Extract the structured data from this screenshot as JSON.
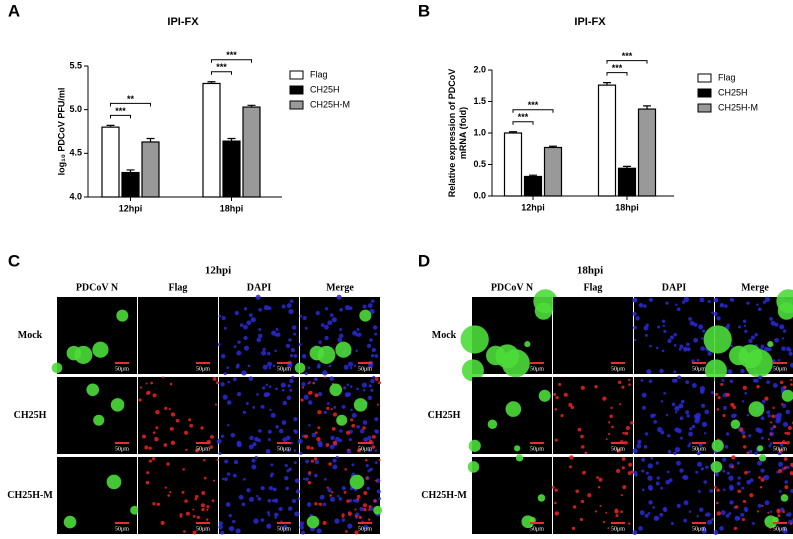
{
  "chart_data": [
    {
      "type": "bar",
      "panel_label": "A",
      "title": "IPI-FX",
      "ylabel": "log₁₀ PDCoV PFU/ml",
      "categories": [
        "12hpi",
        "18hpi"
      ],
      "series": [
        {
          "name": "Flag",
          "color": "#ffffff",
          "values": [
            4.8,
            5.3
          ],
          "errors": [
            0.02,
            0.02
          ]
        },
        {
          "name": "CH25H",
          "color": "#000000",
          "values": [
            4.28,
            4.64
          ],
          "errors": [
            0.03,
            0.03
          ]
        },
        {
          "name": "CH25H-M",
          "color": "#999999",
          "values": [
            4.63,
            5.03
          ],
          "errors": [
            0.04,
            0.02
          ]
        }
      ],
      "annotations": [
        [
          "***",
          "**"
        ],
        [
          "***",
          "***"
        ]
      ],
      "ylim": [
        4.0,
        5.5
      ],
      "yticks": [
        {
          "value": 4,
          "label": "4.0"
        },
        4.5,
        {
          "value": 5,
          "label": "5.0"
        },
        5.5
      ]
    },
    {
      "type": "bar",
      "panel_label": "B",
      "title": "IPI-FX",
      "ylabel": [
        "Relative expression of PDCoV",
        "mRNA (fold)"
      ],
      "categories": [
        "12hpi",
        "18hpi"
      ],
      "series": [
        {
          "name": "Flag",
          "color": "#ffffff",
          "values": [
            1.0,
            1.76
          ],
          "errors": [
            0.02,
            0.04
          ]
        },
        {
          "name": "CH25H",
          "color": "#000000",
          "values": [
            0.31,
            0.44
          ],
          "errors": [
            0.02,
            0.03
          ]
        },
        {
          "name": "CH25H-M",
          "color": "#999999",
          "values": [
            0.77,
            1.38
          ],
          "errors": [
            0.02,
            0.05
          ]
        }
      ],
      "annotations": [
        [
          "***",
          "***"
        ],
        [
          "***",
          "***"
        ]
      ],
      "ylim": [
        0,
        2.0
      ],
      "yticks": [
        {
          "value": 0,
          "label": "0.0"
        },
        0.5,
        {
          "value": 1,
          "label": "1.0"
        },
        1.5,
        {
          "value": 2,
          "label": "2.0"
        }
      ]
    }
  ],
  "panels": [
    {
      "letter": "C",
      "title": "12hpi",
      "columns": [
        "PDCoV N",
        "Flag",
        "DAPI",
        "Merge"
      ],
      "rows": [
        "Mock",
        "CH25H",
        "CH25H-M"
      ],
      "scale_bar": "50μm"
    },
    {
      "letter": "D",
      "title": "18hpi",
      "columns": [
        "PDCoV N",
        "Flag",
        "DAPI",
        "Merge"
      ],
      "rows": [
        "Mock",
        "CH25H",
        "CH25H-M"
      ],
      "scale_bar": "50μm"
    }
  ]
}
